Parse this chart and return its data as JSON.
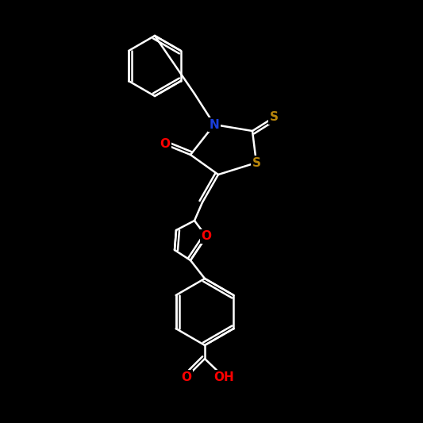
{
  "background_color": "#000000",
  "atom_colors": {
    "N": "#1a3fdb",
    "O": "#ff0000",
    "S": "#b8860b",
    "C": "#ffffff"
  },
  "bond_color": "#ffffff",
  "figsize": [
    5.33,
    5.33
  ],
  "dpi": 100
}
